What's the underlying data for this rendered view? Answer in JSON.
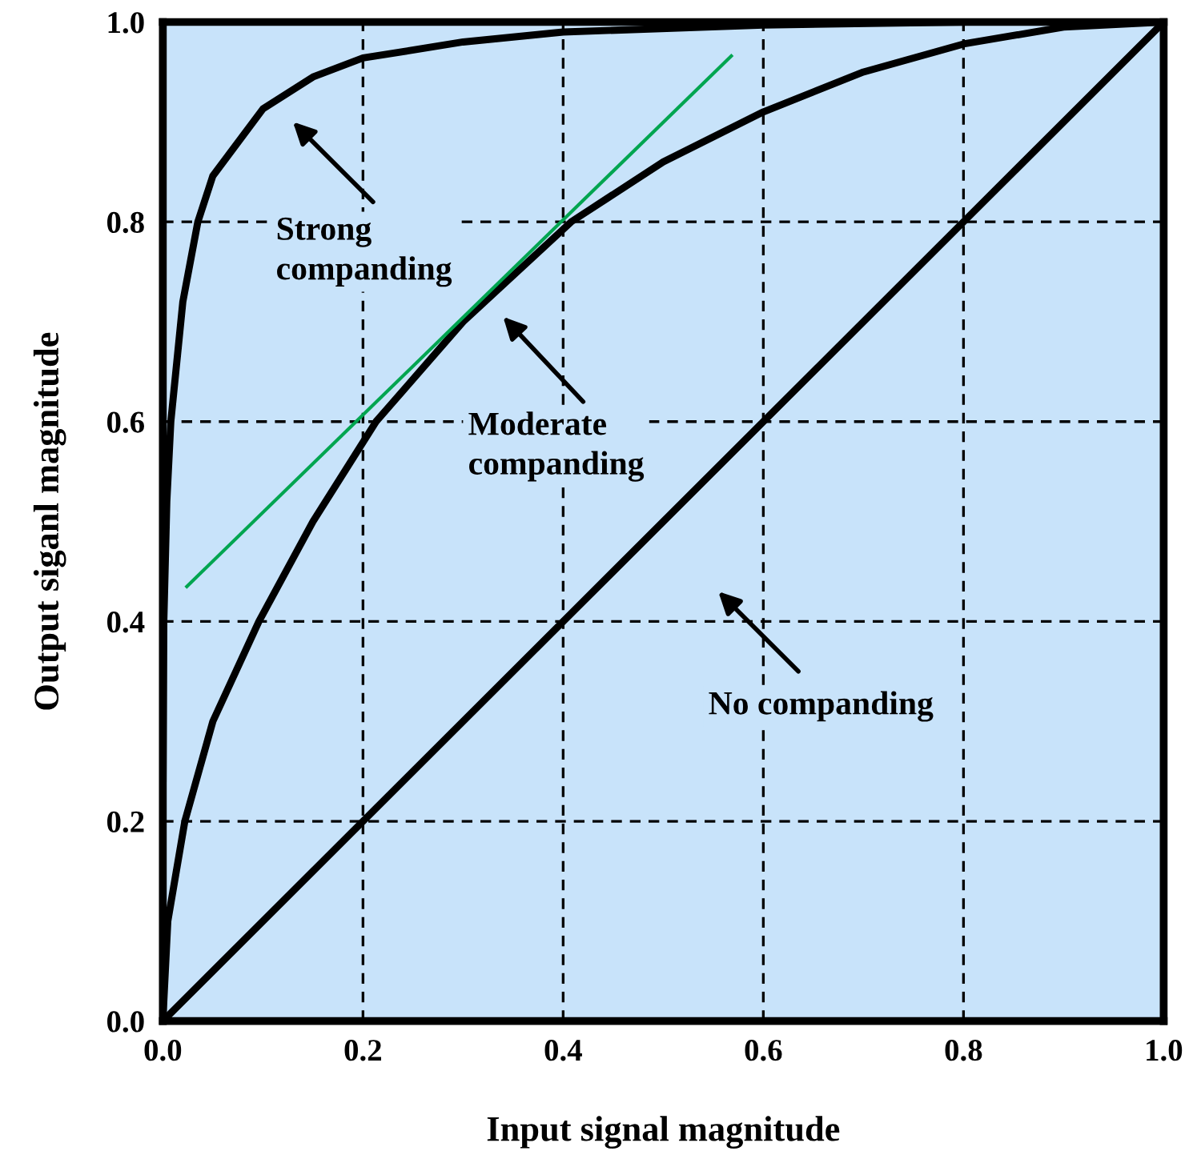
{
  "chart_data": {
    "type": "line",
    "xlabel": "Input signal magnitude",
    "ylabel": "Output siganl magnitude",
    "xlim": [
      0,
      1
    ],
    "ylim": [
      0,
      1
    ],
    "xticks": [
      {
        "value": 0,
        "label": "0.0"
      },
      0.2,
      0.4,
      0.6,
      0.8,
      {
        "value": 1,
        "label": "1.0"
      }
    ],
    "yticks": [
      {
        "value": 0,
        "label": "0.0"
      },
      0.2,
      0.4,
      0.6,
      0.8,
      {
        "value": 1,
        "label": "1.0"
      }
    ],
    "grid": true,
    "line_style": "solid",
    "marker": "none",
    "series": [
      {
        "color": "#000000",
        "x": [
          0,
          0.001,
          0.004,
          0.008,
          0.02,
          0.035,
          0.05,
          0.1,
          0.15,
          0.2,
          0.3,
          0.4,
          0.6,
          0.8
        ],
        "values": [
          0.2,
          0.4,
          0.52,
          0.6,
          0.72,
          0.8,
          0.846,
          0.913,
          0.945,
          0.964,
          0.98,
          0.99,
          0.997,
          1
        ]
      },
      {
        "color": "#000000",
        "x": [
          0,
          0.005,
          0.022,
          0.05,
          0.096,
          0.15,
          0.213,
          0.3,
          0.408,
          0.5,
          0.6,
          0.7,
          0.8,
          0.9,
          1
        ],
        "values": [
          0,
          0.1,
          0.2,
          0.3,
          0.4,
          0.5,
          0.6,
          0.7,
          0.8,
          0.86,
          0.91,
          0.95,
          0.978,
          0.995,
          1
        ]
      },
      {
        "color": "#000000",
        "x": [
          0,
          1
        ],
        "values": [
          0,
          1
        ]
      },
      {
        "color": "#00a550",
        "x": [
          0.024,
          0.568
        ],
        "values": [
          0.435,
          0.966
        ]
      }
    ],
    "annotations": [
      "Strong\ncompanding",
      "Moderate\ncompanding",
      "No companding"
    ]
  }
}
